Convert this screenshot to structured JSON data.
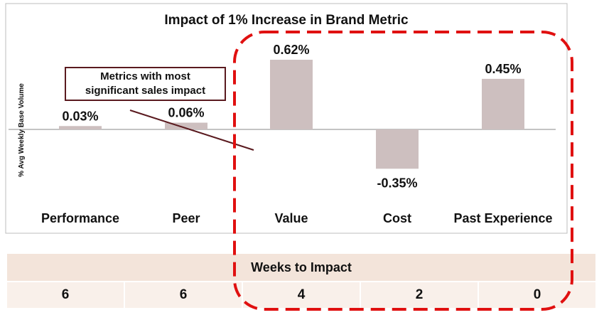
{
  "chart_data": {
    "type": "bar",
    "title": "Impact of 1% Increase in Brand Metric",
    "ylabel": "% Avg Weekly Base Volume",
    "categories": [
      "Performance",
      "Peer",
      "Value",
      "Cost",
      "Past Experience"
    ],
    "values": [
      0.03,
      0.06,
      0.62,
      -0.35,
      0.45
    ],
    "data_labels": [
      "0.03%",
      "0.06%",
      "0.62%",
      "-0.35%",
      "0.45%"
    ],
    "ylim": [
      -0.75,
      0.75
    ],
    "bar_color": "#cdbfbf",
    "grid": false
  },
  "callout": {
    "line1": "Metrics with most",
    "line2": "significant sales impact",
    "border_color": "#5a1a1f"
  },
  "highlight": {
    "color": "#e01010"
  },
  "weeks": {
    "header": "Weeks to Impact",
    "values": [
      "6",
      "6",
      "4",
      "2",
      "0"
    ]
  }
}
